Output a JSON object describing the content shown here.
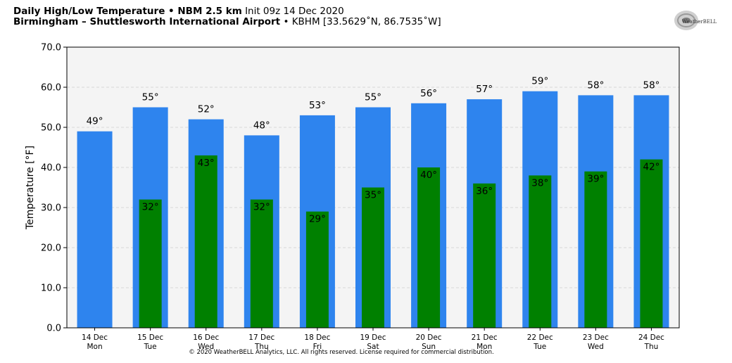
{
  "header": {
    "line1_bold": "Daily High/Low Temperature • NBM 2.5 km",
    "line1_regular": "Init 09z 14 Dec 2020",
    "line2_bold": "Birmingham – Shuttlesworth International Airport",
    "line2_regular": "• KBHM [33.5629˚N, 86.7535˚W]"
  },
  "logo": {
    "text": "WeatherBELL"
  },
  "footer": {
    "copyright": "© 2020 WeatherBELL Analytics, LLC. All rights reserved. License required for commercial distribution."
  },
  "colors": {
    "high": "#2e84ee",
    "low": "#008000",
    "plot_bg": "#f4f4f4",
    "grid": "#d9d9d9"
  },
  "chart_data": {
    "type": "bar",
    "title": "Daily High/Low Temperature • NBM 2.5 km",
    "ylabel": "Temperature [°F]",
    "xlabel": "",
    "ylim": [
      0,
      70
    ],
    "yticks": [
      "0.0",
      "10.0",
      "20.0",
      "30.0",
      "40.0",
      "50.0",
      "60.0",
      "70.0"
    ],
    "grid": true,
    "categories": [
      {
        "date": "14 Dec",
        "day": "Mon"
      },
      {
        "date": "15 Dec",
        "day": "Tue"
      },
      {
        "date": "16 Dec",
        "day": "Wed"
      },
      {
        "date": "17 Dec",
        "day": "Thu"
      },
      {
        "date": "18 Dec",
        "day": "Fri"
      },
      {
        "date": "19 Dec",
        "day": "Sat"
      },
      {
        "date": "20 Dec",
        "day": "Sun"
      },
      {
        "date": "21 Dec",
        "day": "Mon"
      },
      {
        "date": "22 Dec",
        "day": "Tue"
      },
      {
        "date": "23 Dec",
        "day": "Wed"
      },
      {
        "date": "24 Dec",
        "day": "Thu"
      }
    ],
    "series": [
      {
        "values": [
          49,
          55,
          52,
          48,
          53,
          55,
          56,
          57,
          59,
          58,
          58
        ],
        "labels": [
          "49°",
          "55°",
          "52°",
          "48°",
          "53°",
          "55°",
          "56°",
          "57°",
          "59°",
          "58°",
          "58°"
        ]
      },
      {
        "values": [
          null,
          32,
          43,
          32,
          29,
          35,
          40,
          36,
          38,
          39,
          42
        ],
        "labels": [
          null,
          "32°",
          "43°",
          "32°",
          "29°",
          "35°",
          "40°",
          "36°",
          "38°",
          "39°",
          "42°"
        ]
      }
    ]
  }
}
